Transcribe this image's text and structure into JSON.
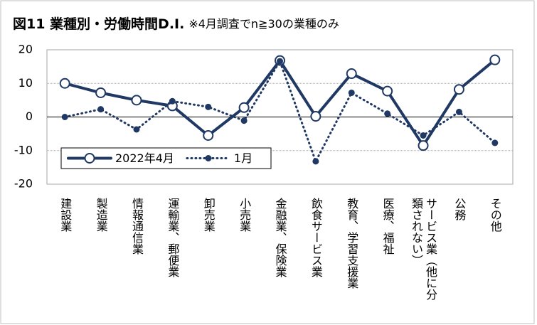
{
  "chart_data": {
    "type": "line",
    "title": "図11 業種別・労働時間D.I.",
    "subtitle": "※4月調査でn≧30の業種のみ",
    "categories": [
      "建設業",
      "製造業",
      "情報通信業",
      "運輸業、郵便業",
      "卸売業",
      "小売業",
      "金融業、保険業",
      "飲食サービス業",
      "教育、学習支援業",
      "医療、福祉",
      "サービス業（他に分類されない）",
      "公務",
      "その他"
    ],
    "series": [
      {
        "name": "2022年4月",
        "color": "#203864",
        "style": "solid",
        "values": [
          10,
          7.2,
          5,
          3.3,
          -5.5,
          2.8,
          16.8,
          0.2,
          12.9,
          7.7,
          -8.5,
          8.2,
          17
        ]
      },
      {
        "name": "1月",
        "color": "#203864",
        "style": "dotted",
        "values": [
          0,
          2.3,
          -3.7,
          4.7,
          3,
          -1.1,
          16.6,
          -13.2,
          7.2,
          1,
          -5.5,
          1.5,
          -7.7
        ]
      }
    ],
    "ylim": [
      -20,
      20
    ],
    "yticks": [
      -20,
      -10,
      0,
      10,
      20
    ],
    "grid": true,
    "legend": "lower left"
  }
}
